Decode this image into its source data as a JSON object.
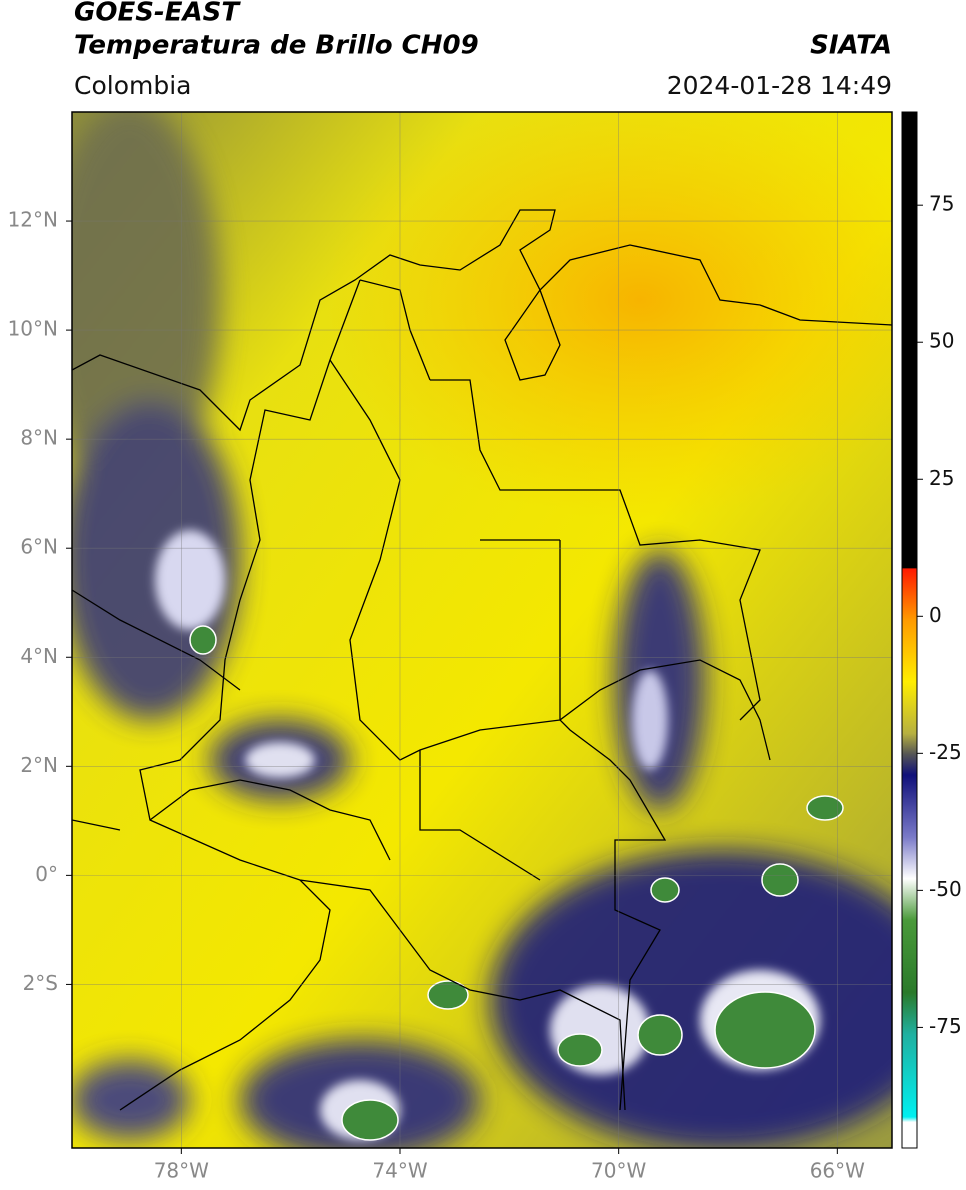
{
  "header": {
    "title": "GOES-EAST",
    "subtitle": "Temperatura de Brillo CH09",
    "source": "SIATA",
    "region": "Colombia",
    "datetime": "2024-01-28 14:49"
  },
  "map": {
    "lonlim": [
      -80,
      -65
    ],
    "latlim": [
      -5,
      14
    ],
    "grid": true,
    "xticks": [
      {
        "value": -78,
        "label": "78°W"
      },
      {
        "value": -74,
        "label": "74°W"
      },
      {
        "value": -70,
        "label": "70°W"
      },
      {
        "value": -66,
        "label": "66°W"
      }
    ],
    "yticks": [
      {
        "value": 12,
        "label": "12°N"
      },
      {
        "value": 10,
        "label": "10°N"
      },
      {
        "value": 8,
        "label": "8°N"
      },
      {
        "value": 6,
        "label": "6°N"
      },
      {
        "value": 4,
        "label": "4°N"
      },
      {
        "value": 2,
        "label": "2°N"
      },
      {
        "value": 0,
        "label": "0°"
      },
      {
        "value": -2,
        "label": "2°S"
      }
    ]
  },
  "colorbar": {
    "lim": [
      -97,
      92
    ],
    "ticks": [
      75,
      50,
      25,
      0,
      -25,
      -50,
      -75
    ]
  }
}
